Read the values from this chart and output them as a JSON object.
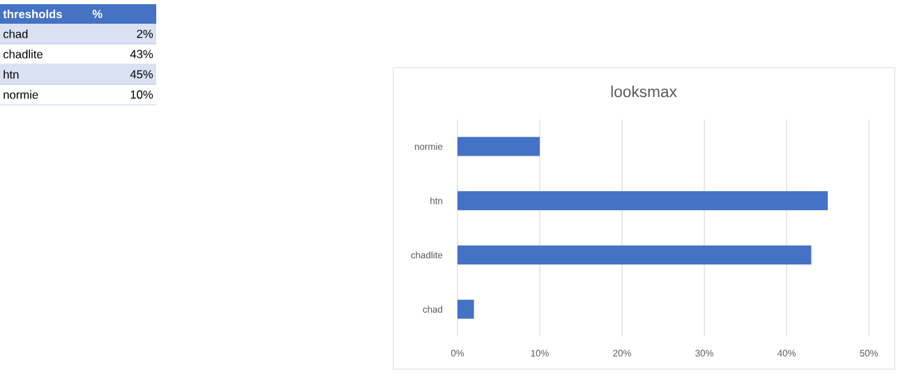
{
  "chart_data": {
    "type": "bar",
    "orientation": "horizontal",
    "title": "looksmax",
    "categories": [
      "normie",
      "htn",
      "chadlite",
      "chad"
    ],
    "values": [
      10,
      45,
      43,
      2
    ],
    "color": "#4472c4",
    "xlim": [
      0,
      50
    ],
    "xticks": [
      {
        "value": 0,
        "label": "0%"
      },
      {
        "value": 10,
        "label": "10%"
      },
      {
        "value": 20,
        "label": "20%"
      },
      {
        "value": 30,
        "label": "30%"
      },
      {
        "value": 40,
        "label": "40%"
      },
      {
        "value": 50,
        "label": "50%"
      }
    ],
    "grid": "x",
    "annotations": [
      "thresholds",
      "%",
      "chad",
      "2%",
      "chadlite",
      "43%",
      "htn",
      "45%",
      "normie",
      "10%"
    ]
  }
}
